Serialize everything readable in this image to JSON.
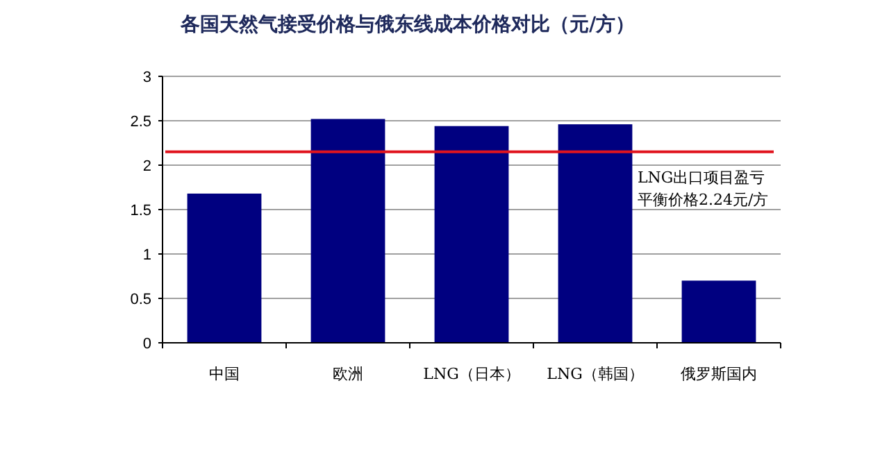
{
  "chart_data": {
    "type": "bar",
    "title": "各国天然气接受价格与俄东线成本价格对比（元/方）",
    "categories": [
      "中国",
      "欧洲",
      "LNG（日本）",
      "LNG（韩国）",
      "俄罗斯国内"
    ],
    "values": [
      1.68,
      2.52,
      2.44,
      2.46,
      0.7
    ],
    "color": "#000080",
    "ylim": [
      0,
      3
    ],
    "yticks": [
      0,
      0.5,
      1,
      1.5,
      2,
      2.5,
      3
    ],
    "grid": "y",
    "ref_lines": [
      {
        "axis": "y",
        "value": 2.15,
        "label": "LNG出口项目盈亏平衡价格2.24元/方",
        "color": "#e0141e"
      }
    ]
  }
}
